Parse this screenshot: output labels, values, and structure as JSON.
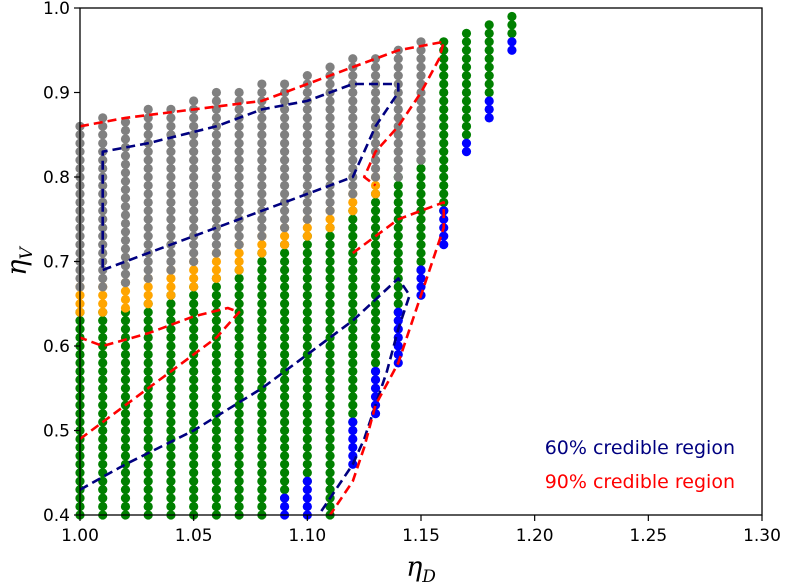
{
  "chart_data": {
    "type": "scatter",
    "xlabel": "η",
    "xlabel_sub": "D",
    "ylabel": "η",
    "ylabel_sub": "V",
    "xlim": [
      1.0,
      1.3
    ],
    "ylim": [
      0.4,
      1.0
    ],
    "xticks": [
      "1.00",
      "1.05",
      "1.10",
      "1.15",
      "1.20",
      "1.25",
      "1.30"
    ],
    "yticks": [
      "0.4",
      "0.5",
      "0.6",
      "0.7",
      "0.8",
      "0.9",
      "1.0"
    ],
    "x_tick_values": [
      1.0,
      1.05,
      1.1,
      1.15,
      1.2,
      1.25,
      1.3
    ],
    "y_tick_values": [
      0.4,
      0.5,
      0.6,
      0.7,
      0.8,
      0.9,
      1.0
    ],
    "grid": false,
    "colors": {
      "green": "#008000",
      "blue": "#0000ff",
      "orange": "#ffa500",
      "gray": "#808080",
      "contour60": "#000080",
      "contour90": "#ff0000"
    },
    "point_step": 0.01,
    "columns": [
      {
        "x": 1.0,
        "green": [
          0.4,
          0.64
        ],
        "orange": [
          0.64,
          0.67
        ],
        "gray": [
          0.67,
          0.86
        ]
      },
      {
        "x": 1.01,
        "green": [
          0.4,
          0.64
        ],
        "orange": [
          0.64,
          0.67
        ],
        "gray": [
          0.67,
          0.87
        ]
      },
      {
        "x": 1.02,
        "green": [
          0.4,
          0.645
        ],
        "orange": [
          0.645,
          0.675
        ],
        "gray": [
          0.675,
          0.87
        ]
      },
      {
        "x": 1.03,
        "green": [
          0.4,
          0.65
        ],
        "orange": [
          0.65,
          0.68
        ],
        "gray": [
          0.68,
          0.88
        ]
      },
      {
        "x": 1.04,
        "green": [
          0.4,
          0.66
        ],
        "orange": [
          0.66,
          0.69
        ],
        "gray": [
          0.69,
          0.88
        ]
      },
      {
        "x": 1.05,
        "green": [
          0.4,
          0.67
        ],
        "orange": [
          0.67,
          0.7
        ],
        "gray": [
          0.7,
          0.89
        ]
      },
      {
        "x": 1.06,
        "green": [
          0.4,
          0.68
        ],
        "orange": [
          0.68,
          0.71
        ],
        "gray": [
          0.71,
          0.9
        ]
      },
      {
        "x": 1.07,
        "green": [
          0.4,
          0.69
        ],
        "orange": [
          0.69,
          0.72
        ],
        "gray": [
          0.72,
          0.9
        ]
      },
      {
        "x": 1.08,
        "green": [
          0.4,
          0.71
        ],
        "orange": [
          0.71,
          0.73
        ],
        "gray": [
          0.73,
          0.91
        ]
      },
      {
        "x": 1.09,
        "blue": [
          0.4,
          0.42
        ],
        "green": [
          0.42,
          0.72
        ],
        "orange": [
          0.72,
          0.74
        ],
        "gray": [
          0.74,
          0.91
        ]
      },
      {
        "x": 1.1,
        "blue": [
          0.4,
          0.44
        ],
        "green": [
          0.44,
          0.73
        ],
        "orange": [
          0.73,
          0.75
        ],
        "gray": [
          0.75,
          0.92
        ]
      },
      {
        "x": 1.11,
        "green": [
          0.4,
          0.74
        ],
        "orange": [
          0.74,
          0.76
        ],
        "gray": [
          0.76,
          0.93
        ]
      },
      {
        "x": 1.12,
        "blue": [
          0.46,
          0.51
        ],
        "green": [
          0.51,
          0.76
        ],
        "orange": [
          0.76,
          0.78
        ],
        "gray": [
          0.78,
          0.94
        ]
      },
      {
        "x": 1.13,
        "blue": [
          0.52,
          0.57
        ],
        "green": [
          0.57,
          0.78
        ],
        "orange": [
          0.78,
          0.8
        ],
        "gray": [
          0.8,
          0.94
        ]
      },
      {
        "x": 1.14,
        "blue": [
          0.58,
          0.64
        ],
        "green": [
          0.64,
          0.8
        ],
        "gray": [
          0.8,
          0.95
        ]
      },
      {
        "x": 1.15,
        "blue": [
          0.66,
          0.69
        ],
        "green": [
          0.69,
          0.82
        ],
        "gray": [
          0.82,
          0.96
        ]
      },
      {
        "x": 1.16,
        "blue": [
          0.72,
          0.76
        ],
        "green": [
          0.76,
          0.96
        ]
      },
      {
        "x": 1.17,
        "blue": [
          0.83,
          0.84
        ],
        "green": [
          0.85,
          0.97
        ]
      },
      {
        "x": 1.18,
        "blue": [
          0.87,
          0.89
        ],
        "green": [
          0.9,
          0.98
        ]
      },
      {
        "x": 1.19,
        "blue": [
          0.95,
          0.96
        ],
        "green": [
          0.97,
          0.99
        ]
      }
    ],
    "contours": [
      {
        "color": "#000080",
        "points": [
          [
            1.0,
            0.43
          ],
          [
            1.02,
            0.46
          ],
          [
            1.05,
            0.5
          ],
          [
            1.08,
            0.55
          ],
          [
            1.1,
            0.59
          ],
          [
            1.12,
            0.63
          ],
          [
            1.14,
            0.68
          ],
          [
            1.145,
            0.66
          ],
          [
            1.14,
            0.62
          ],
          [
            1.135,
            0.57
          ],
          [
            1.13,
            0.53
          ],
          [
            1.125,
            0.49
          ],
          [
            1.12,
            0.46
          ],
          [
            1.11,
            0.42
          ],
          [
            1.105,
            0.4
          ]
        ]
      },
      {
        "color": "#000080",
        "points": [
          [
            1.01,
            0.69
          ],
          [
            1.04,
            0.72
          ],
          [
            1.07,
            0.75
          ],
          [
            1.1,
            0.78
          ],
          [
            1.12,
            0.8
          ],
          [
            1.125,
            0.83
          ],
          [
            1.13,
            0.86
          ],
          [
            1.14,
            0.9
          ],
          [
            1.14,
            0.91
          ],
          [
            1.12,
            0.91
          ],
          [
            1.1,
            0.89
          ],
          [
            1.08,
            0.88
          ],
          [
            1.06,
            0.86
          ],
          [
            1.03,
            0.84
          ],
          [
            1.01,
            0.83
          ],
          [
            1.01,
            0.69
          ]
        ]
      },
      {
        "color": "#ff0000",
        "points": [
          [
            1.0,
            0.49
          ],
          [
            1.02,
            0.53
          ],
          [
            1.04,
            0.57
          ],
          [
            1.06,
            0.61
          ],
          [
            1.07,
            0.64
          ],
          [
            1.065,
            0.645
          ],
          [
            1.05,
            0.635
          ],
          [
            1.03,
            0.615
          ],
          [
            1.01,
            0.6
          ],
          [
            1.0,
            0.61
          ]
        ]
      },
      {
        "color": "#ff0000",
        "points": [
          [
            1.0,
            0.86
          ],
          [
            1.02,
            0.87
          ],
          [
            1.05,
            0.88
          ],
          [
            1.08,
            0.89
          ],
          [
            1.1,
            0.91
          ],
          [
            1.12,
            0.93
          ],
          [
            1.14,
            0.95
          ],
          [
            1.16,
            0.96
          ],
          [
            1.158,
            0.94
          ],
          [
            1.15,
            0.9
          ],
          [
            1.14,
            0.86
          ],
          [
            1.13,
            0.83
          ],
          [
            1.125,
            0.8
          ],
          [
            1.13,
            0.79
          ]
        ]
      },
      {
        "color": "#ff0000",
        "points": [
          [
            1.12,
            0.71
          ],
          [
            1.13,
            0.73
          ],
          [
            1.14,
            0.75
          ],
          [
            1.15,
            0.76
          ],
          [
            1.16,
            0.77
          ],
          [
            1.16,
            0.74
          ],
          [
            1.155,
            0.7
          ],
          [
            1.15,
            0.66
          ],
          [
            1.145,
            0.62
          ],
          [
            1.14,
            0.58
          ],
          [
            1.13,
            0.53
          ],
          [
            1.125,
            0.48
          ],
          [
            1.12,
            0.44
          ],
          [
            1.11,
            0.4
          ]
        ]
      }
    ],
    "legend": {
      "position": "lower-right",
      "entries": [
        {
          "label": "60% credible region",
          "color": "#000080"
        },
        {
          "label": "90% credible region",
          "color": "#ff0000"
        }
      ]
    }
  }
}
